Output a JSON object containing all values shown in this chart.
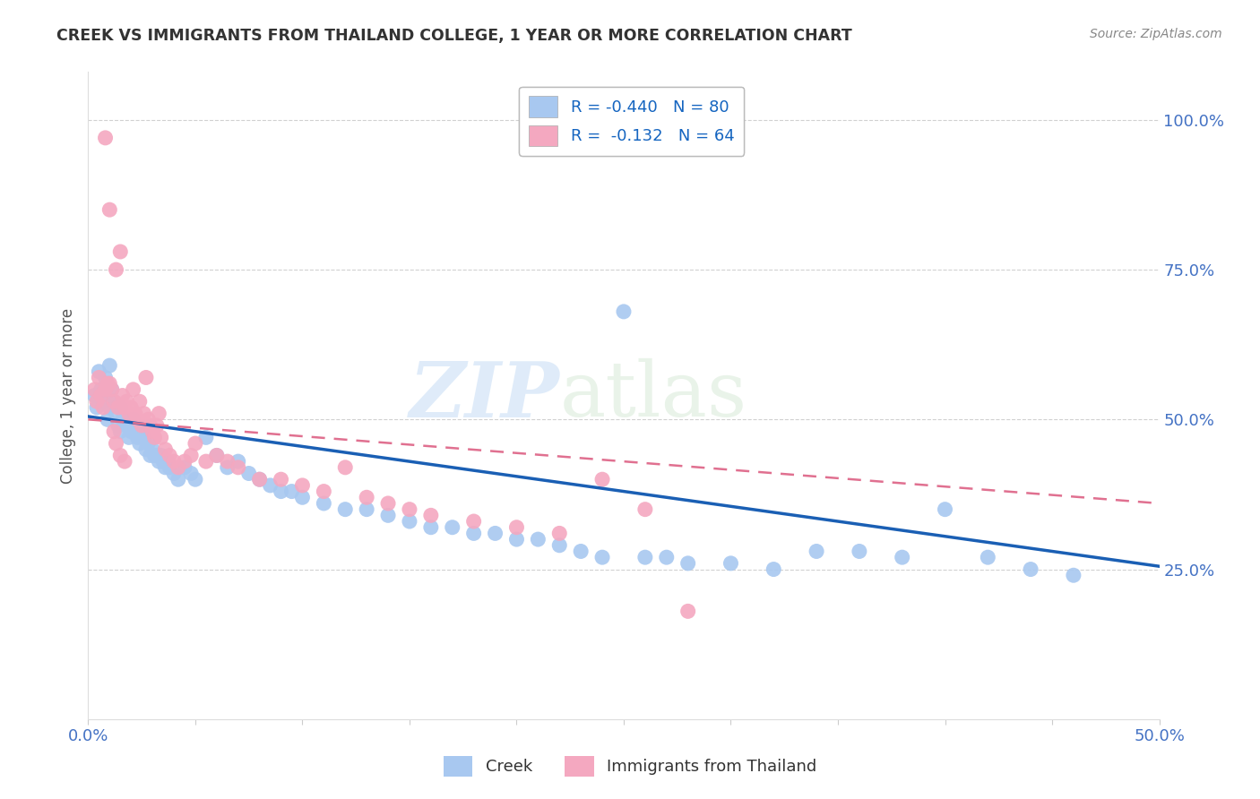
{
  "title": "CREEK VS IMMIGRANTS FROM THAILAND COLLEGE, 1 YEAR OR MORE CORRELATION CHART",
  "source_text": "Source: ZipAtlas.com",
  "ylabel": "College, 1 year or more",
  "xlim": [
    0.0,
    0.5
  ],
  "ylim": [
    0.0,
    1.08
  ],
  "xtick_vals": [
    0.0,
    0.05,
    0.1,
    0.15,
    0.2,
    0.25,
    0.3,
    0.35,
    0.4,
    0.45,
    0.5
  ],
  "xtick_labels": [
    "0.0%",
    "",
    "",
    "",
    "",
    "",
    "",
    "",
    "",
    "",
    "50.0%"
  ],
  "ytick_vals": [
    0.25,
    0.5,
    0.75,
    1.0
  ],
  "ytick_labels": [
    "25.0%",
    "50.0%",
    "75.0%",
    "100.0%"
  ],
  "legend_labels": [
    "Creek",
    "Immigrants from Thailand"
  ],
  "blue_color": "#A8C8F0",
  "pink_color": "#F4A8C0",
  "blue_line_color": "#1A5FB4",
  "pink_line_color": "#E07090",
  "R_blue": -0.44,
  "N_blue": 80,
  "R_pink": -0.132,
  "N_pink": 64,
  "watermark_zip": "ZIP",
  "watermark_atlas": "atlas",
  "blue_scatter_x": [
    0.003,
    0.004,
    0.005,
    0.006,
    0.007,
    0.008,
    0.009,
    0.01,
    0.01,
    0.011,
    0.012,
    0.013,
    0.014,
    0.015,
    0.015,
    0.016,
    0.017,
    0.018,
    0.019,
    0.02,
    0.021,
    0.022,
    0.023,
    0.024,
    0.025,
    0.026,
    0.027,
    0.028,
    0.029,
    0.03,
    0.031,
    0.032,
    0.033,
    0.034,
    0.035,
    0.036,
    0.037,
    0.038,
    0.04,
    0.042,
    0.045,
    0.048,
    0.05,
    0.055,
    0.06,
    0.065,
    0.07,
    0.075,
    0.08,
    0.085,
    0.09,
    0.095,
    0.1,
    0.11,
    0.12,
    0.13,
    0.14,
    0.15,
    0.16,
    0.17,
    0.18,
    0.19,
    0.2,
    0.21,
    0.22,
    0.23,
    0.24,
    0.26,
    0.28,
    0.3,
    0.32,
    0.34,
    0.36,
    0.38,
    0.4,
    0.42,
    0.44,
    0.46,
    0.25,
    0.27
  ],
  "blue_scatter_y": [
    0.54,
    0.52,
    0.58,
    0.55,
    0.53,
    0.57,
    0.5,
    0.59,
    0.52,
    0.55,
    0.53,
    0.51,
    0.49,
    0.52,
    0.48,
    0.5,
    0.5,
    0.49,
    0.47,
    0.48,
    0.5,
    0.49,
    0.47,
    0.46,
    0.48,
    0.47,
    0.45,
    0.46,
    0.44,
    0.45,
    0.44,
    0.44,
    0.43,
    0.44,
    0.43,
    0.42,
    0.43,
    0.42,
    0.41,
    0.4,
    0.42,
    0.41,
    0.4,
    0.47,
    0.44,
    0.42,
    0.43,
    0.41,
    0.4,
    0.39,
    0.38,
    0.38,
    0.37,
    0.36,
    0.35,
    0.35,
    0.34,
    0.33,
    0.32,
    0.32,
    0.31,
    0.31,
    0.3,
    0.3,
    0.29,
    0.28,
    0.27,
    0.27,
    0.26,
    0.26,
    0.25,
    0.28,
    0.28,
    0.27,
    0.35,
    0.27,
    0.25,
    0.24,
    0.68,
    0.27
  ],
  "pink_scatter_x": [
    0.003,
    0.004,
    0.005,
    0.006,
    0.007,
    0.008,
    0.008,
    0.009,
    0.01,
    0.01,
    0.011,
    0.012,
    0.013,
    0.014,
    0.015,
    0.016,
    0.017,
    0.018,
    0.019,
    0.02,
    0.021,
    0.022,
    0.023,
    0.024,
    0.025,
    0.026,
    0.027,
    0.028,
    0.029,
    0.03,
    0.031,
    0.032,
    0.033,
    0.034,
    0.036,
    0.038,
    0.04,
    0.042,
    0.045,
    0.048,
    0.05,
    0.055,
    0.06,
    0.065,
    0.07,
    0.08,
    0.09,
    0.1,
    0.11,
    0.12,
    0.13,
    0.14,
    0.15,
    0.16,
    0.18,
    0.2,
    0.22,
    0.24,
    0.26,
    0.28,
    0.012,
    0.013,
    0.015,
    0.017
  ],
  "pink_scatter_y": [
    0.55,
    0.53,
    0.57,
    0.54,
    0.52,
    0.97,
    0.55,
    0.56,
    0.56,
    0.85,
    0.55,
    0.53,
    0.75,
    0.52,
    0.78,
    0.54,
    0.52,
    0.53,
    0.51,
    0.52,
    0.55,
    0.51,
    0.5,
    0.53,
    0.49,
    0.51,
    0.57,
    0.5,
    0.49,
    0.48,
    0.47,
    0.49,
    0.51,
    0.47,
    0.45,
    0.44,
    0.43,
    0.42,
    0.43,
    0.44,
    0.46,
    0.43,
    0.44,
    0.43,
    0.42,
    0.4,
    0.4,
    0.39,
    0.38,
    0.42,
    0.37,
    0.36,
    0.35,
    0.34,
    0.33,
    0.32,
    0.31,
    0.4,
    0.35,
    0.18,
    0.48,
    0.46,
    0.44,
    0.43
  ]
}
